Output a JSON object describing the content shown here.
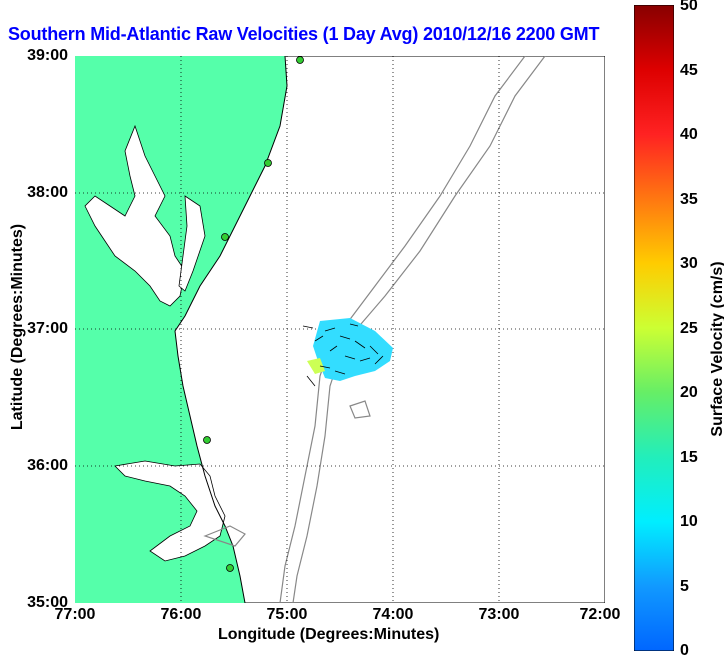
{
  "title": "Southern Mid-Atlantic Raw Velocities (1 Day Avg) 2010/12/16 2200 GMT",
  "map": {
    "xlabel": "Longitude (Degrees:Minutes)",
    "ylabel": "Latitude (Degrees:Minutes)",
    "x_ticks": [
      "77:00",
      "76:00",
      "75:00",
      "74:00",
      "73:00",
      "72:00"
    ],
    "y_ticks": [
      "39:00",
      "38:00",
      "37:00",
      "36:00",
      "35:00"
    ],
    "land_color": "#55ffaa",
    "grid": "dotted"
  },
  "colorbar": {
    "label": "Surface Velocity (cm/s)",
    "ticks": [
      "50",
      "45",
      "40",
      "35",
      "30",
      "25",
      "20",
      "15",
      "10",
      "5",
      "0"
    ],
    "range": [
      0,
      50
    ],
    "colormap": "jet"
  },
  "stations": [
    {
      "name": "station-1"
    },
    {
      "name": "station-2"
    },
    {
      "name": "station-3"
    },
    {
      "name": "station-4"
    },
    {
      "name": "station-5"
    }
  ]
}
